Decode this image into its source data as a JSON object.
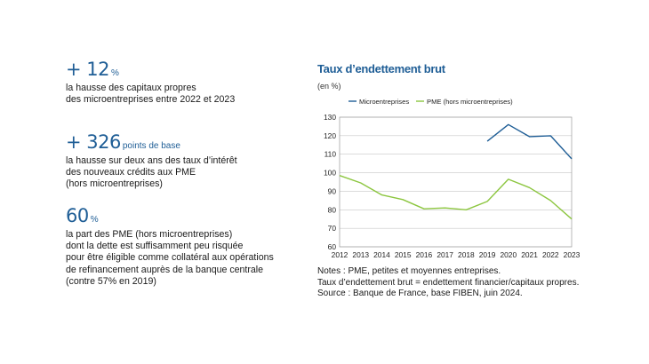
{
  "kpis": [
    {
      "value": "+ 12",
      "unit": "%",
      "lines": [
        "la hausse des capitaux propres",
        "des microentreprises entre 2022 et 2023"
      ]
    },
    {
      "value": "+ 326",
      "unit": "points de base",
      "lines": [
        "la hausse sur deux ans des taux d’intérêt",
        "des nouveaux crédits aux PME",
        "(hors microentreprises)"
      ]
    },
    {
      "value": "60",
      "unit": "%",
      "lines": [
        "la part des PME (hors microentreprises)",
        "dont la dette est suffisamment peu risquée",
        "pour être éligible comme collatéral aux opérations",
        "de refinancement auprès de la banque centrale",
        "(contre 57% en 2019)"
      ]
    }
  ],
  "chart_data": {
    "type": "line",
    "title": "Taux d’endettement brut",
    "unit_label": "(en %)",
    "x": [
      "2012",
      "2013",
      "2014",
      "2015",
      "2016",
      "2017",
      "2018",
      "2019",
      "2020",
      "2021",
      "2022",
      "2023"
    ],
    "ylim": [
      60,
      130
    ],
    "yticks": [
      60,
      70,
      80,
      90,
      100,
      110,
      120,
      130
    ],
    "grid": true,
    "legend_position": "top",
    "series": [
      {
        "name": "Microentreprises",
        "color": "#1f5e96",
        "values": [
          null,
          null,
          null,
          null,
          null,
          null,
          null,
          117,
          126,
          119.5,
          120,
          107.5
        ]
      },
      {
        "name": "PME (hors microentreprises)",
        "color": "#8cc63f",
        "values": [
          98.5,
          94.5,
          88,
          85.5,
          80.5,
          81,
          80,
          84.5,
          96.5,
          92,
          85,
          75
        ]
      }
    ]
  },
  "notes": [
    "Notes : PME, petites et moyennes entreprises.",
    "Taux d’endettement brut = endettement financier/capitaux propres.",
    "Source : Banque de France, base FIBEN, juin 2024."
  ]
}
